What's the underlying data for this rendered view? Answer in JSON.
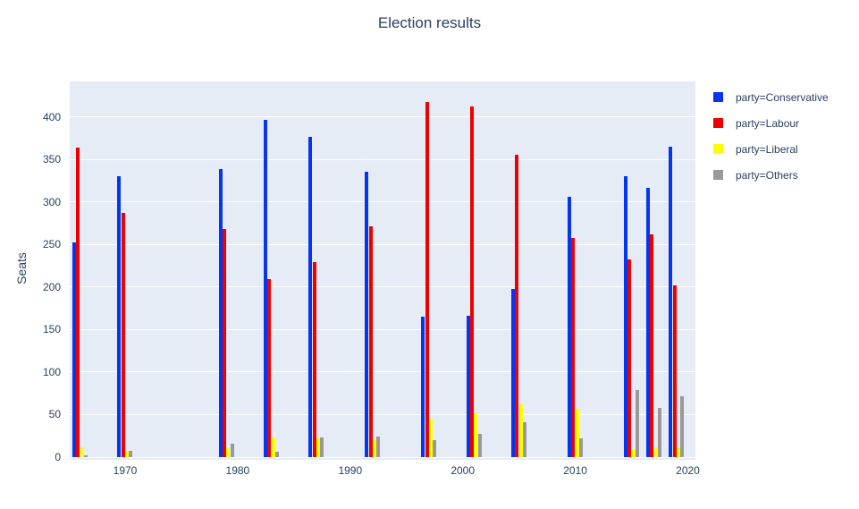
{
  "title": "Election results",
  "y_axis": {
    "label": "Seats",
    "ticks": [
      0,
      50,
      100,
      150,
      200,
      250,
      300,
      350,
      400
    ]
  },
  "x_axis": {
    "ticks": [
      1970,
      1980,
      1990,
      2000,
      2010,
      2020
    ]
  },
  "legend": {
    "items": [
      {
        "label": "party=Conservative",
        "color": "#0635f0"
      },
      {
        "label": "party=Labour",
        "color": "#ee0000"
      },
      {
        "label": "party=Liberal",
        "color": "#ffff00"
      },
      {
        "label": "party=Others",
        "color": "#999999"
      }
    ]
  },
  "style": {
    "text_color": "#2a3f5f",
    "plot_background": "#e5ecf6",
    "gridline_color": "#ffffff",
    "paper_background": "#ffffff"
  },
  "chart_data": {
    "type": "bar",
    "title": "Election results",
    "xlabel": "",
    "ylabel": "Seats",
    "ylim": [
      0,
      440
    ],
    "grid": true,
    "legend_position": "right",
    "x": [
      1966,
      1970,
      1979,
      1983,
      1987,
      1992,
      1997,
      2001,
      2005,
      2010,
      2015,
      2017,
      2019
    ],
    "series": [
      {
        "name": "Conservative",
        "color": "#0635f0",
        "values": [
          252,
          330,
          339,
          397,
          376,
          336,
          165,
          166,
          198,
          306,
          330,
          317,
          365
        ]
      },
      {
        "name": "Labour",
        "color": "#ee0000",
        "values": [
          364,
          287,
          268,
          209,
          229,
          271,
          418,
          412,
          356,
          258,
          232,
          262,
          202
        ]
      },
      {
        "name": "Liberal",
        "color": "#ffff00",
        "values": [
          12,
          6,
          11,
          23,
          22,
          20,
          45,
          52,
          62,
          57,
          8,
          12,
          11
        ]
      },
      {
        "name": "Others",
        "color": "#999999",
        "values": [
          2,
          7,
          16,
          6,
          23,
          24,
          20,
          27,
          41,
          22,
          79,
          58,
          72
        ]
      }
    ]
  }
}
